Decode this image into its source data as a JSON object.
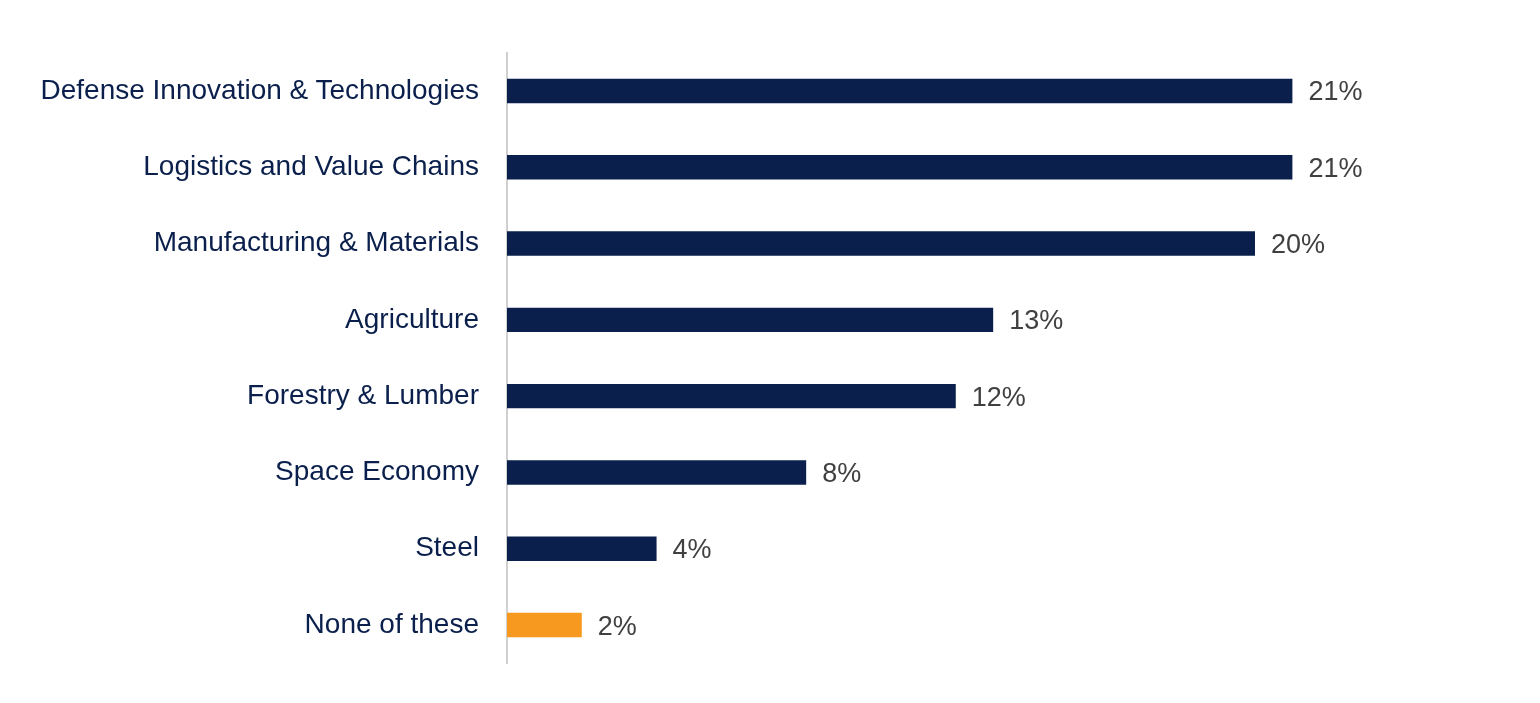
{
  "chart_data": {
    "type": "bar",
    "orientation": "horizontal",
    "categories": [
      "Defense Innovation & Technologies",
      "Logistics and Value Chains",
      "Manufacturing & Materials",
      "Agriculture",
      "Forestry & Lumber",
      "Space Economy",
      "Steel",
      "None of these"
    ],
    "values": [
      21,
      21,
      20,
      13,
      12,
      8,
      4,
      2
    ],
    "value_labels": [
      "21%",
      "21%",
      "20%",
      "13%",
      "12%",
      "8%",
      "4%",
      "2%"
    ],
    "colors": [
      "#0a1f4b",
      "#0a1f4b",
      "#0a1f4b",
      "#0a1f4b",
      "#0a1f4b",
      "#0a1f4b",
      "#0a1f4b",
      "#f7991e"
    ],
    "grid": false,
    "legend": false
  }
}
